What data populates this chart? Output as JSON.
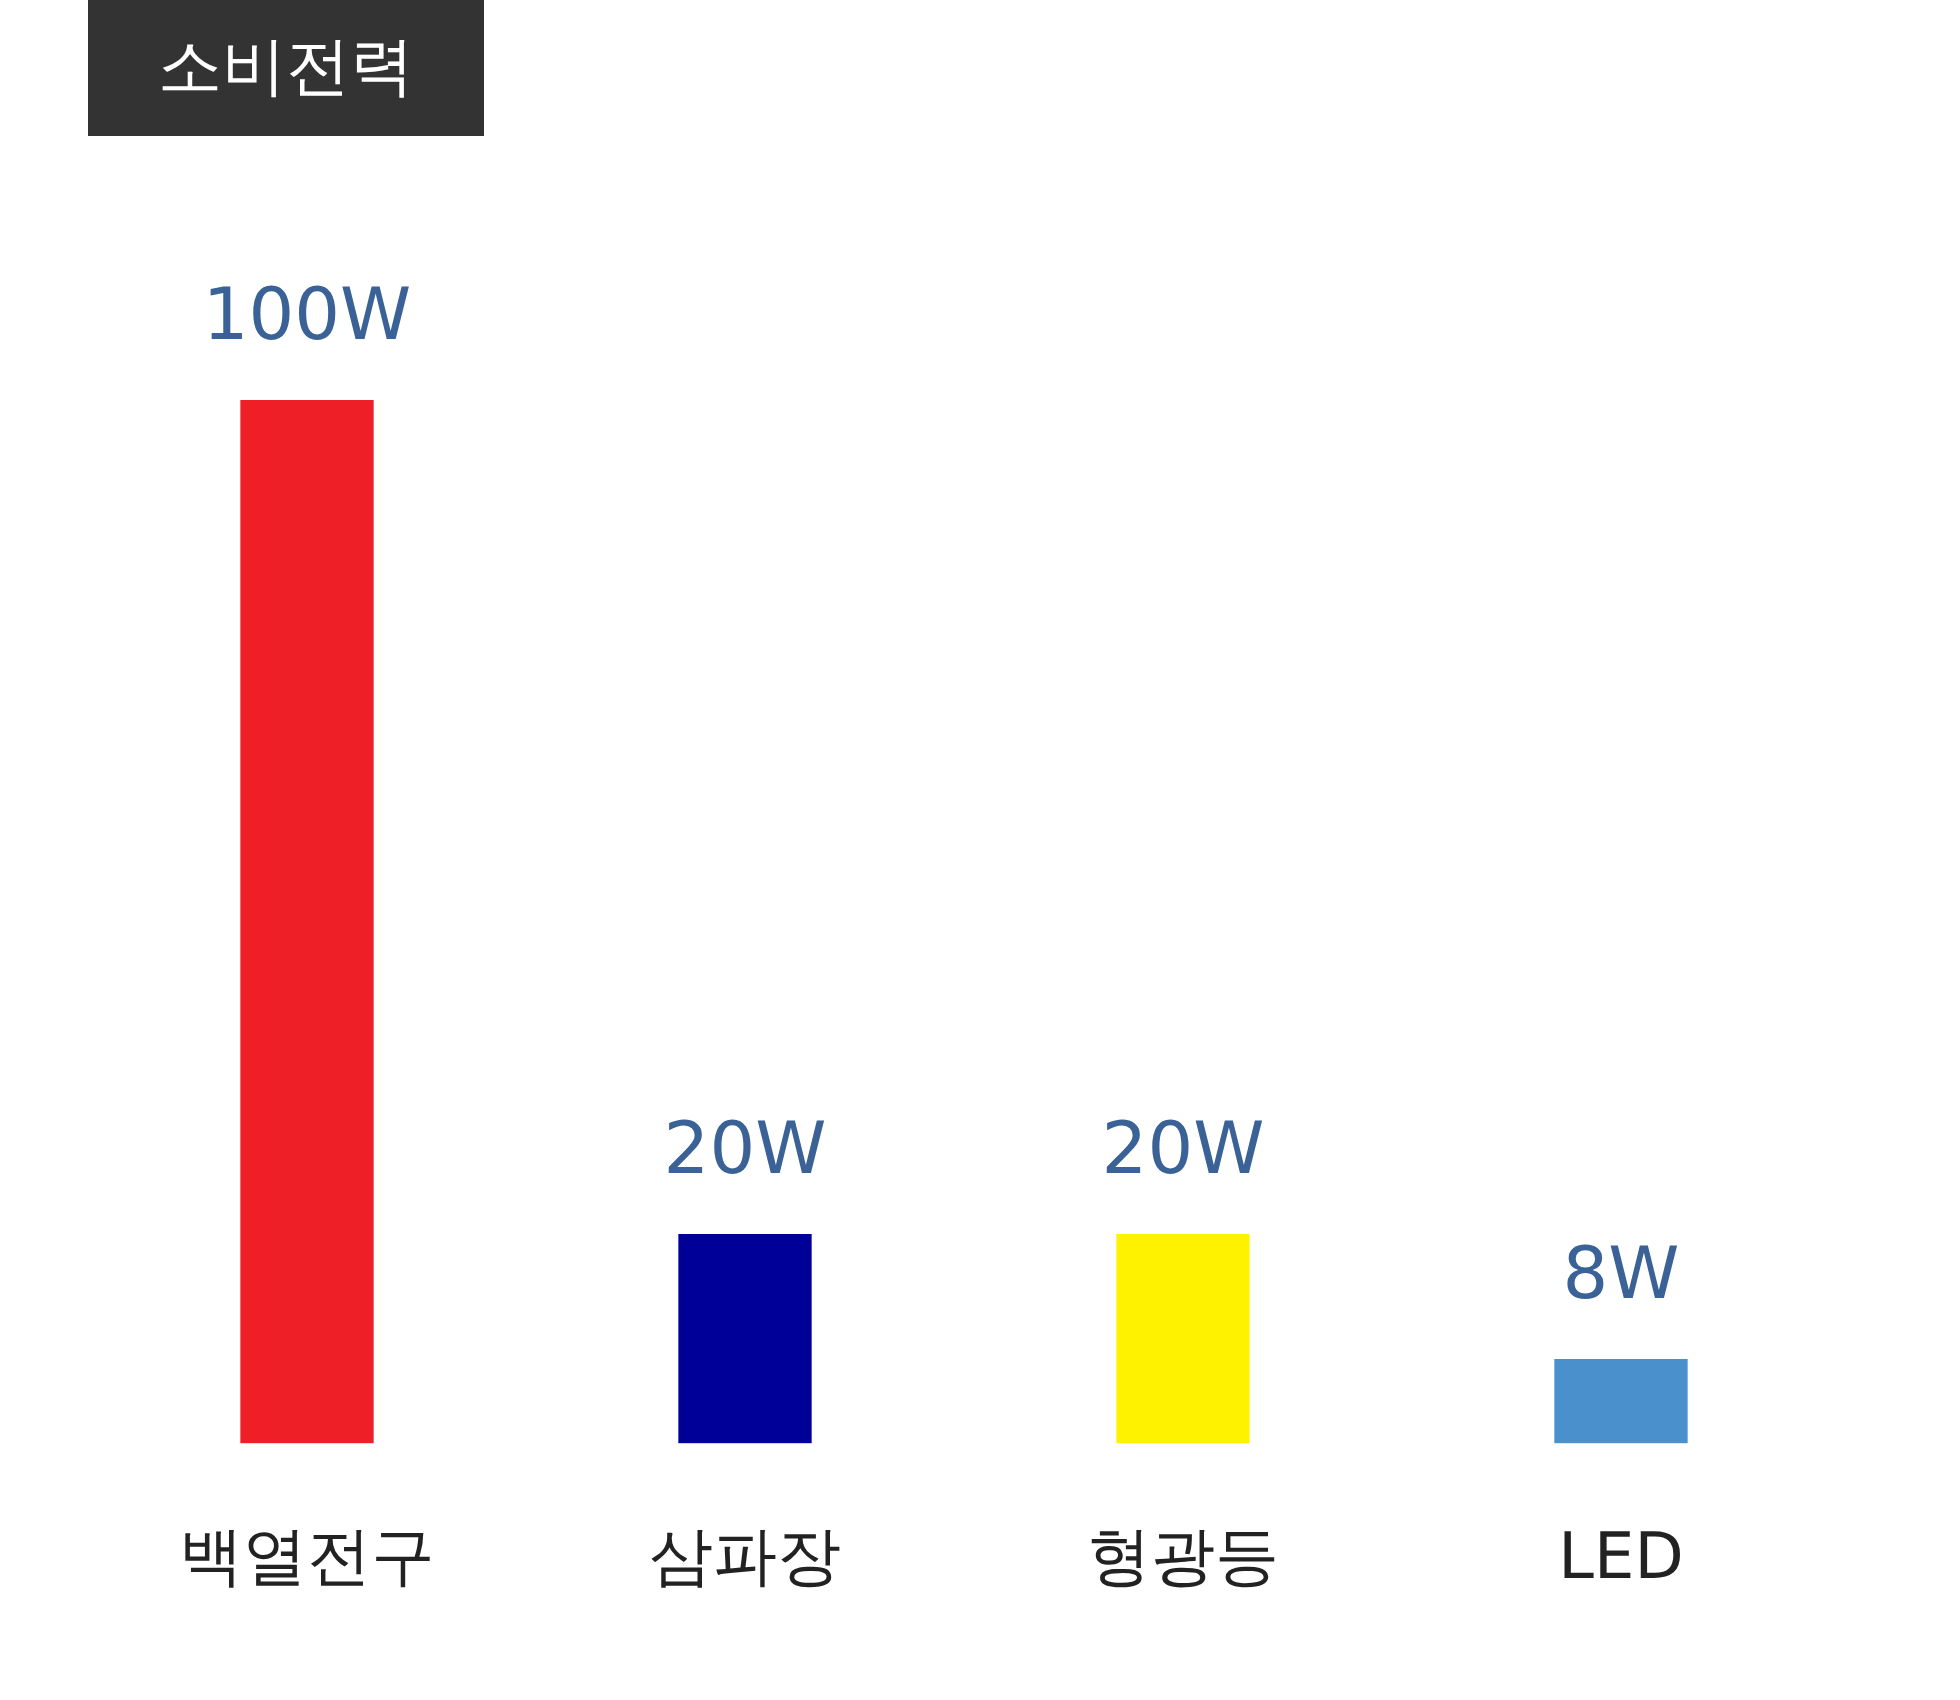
{
  "chart_data": {
    "type": "bar",
    "title": "소비전력",
    "categories": [
      "백열전구",
      "삼파장",
      "형광등",
      "LED"
    ],
    "values": [
      100,
      20,
      20,
      8
    ],
    "colors": [
      "#ee1f26",
      "#000099",
      "#fff200",
      "#4a90cd"
    ],
    "value_labels": [
      "100W",
      "20W",
      "20W",
      "8W"
    ],
    "grid": false,
    "legend": false,
    "tick_labels": "x"
  }
}
